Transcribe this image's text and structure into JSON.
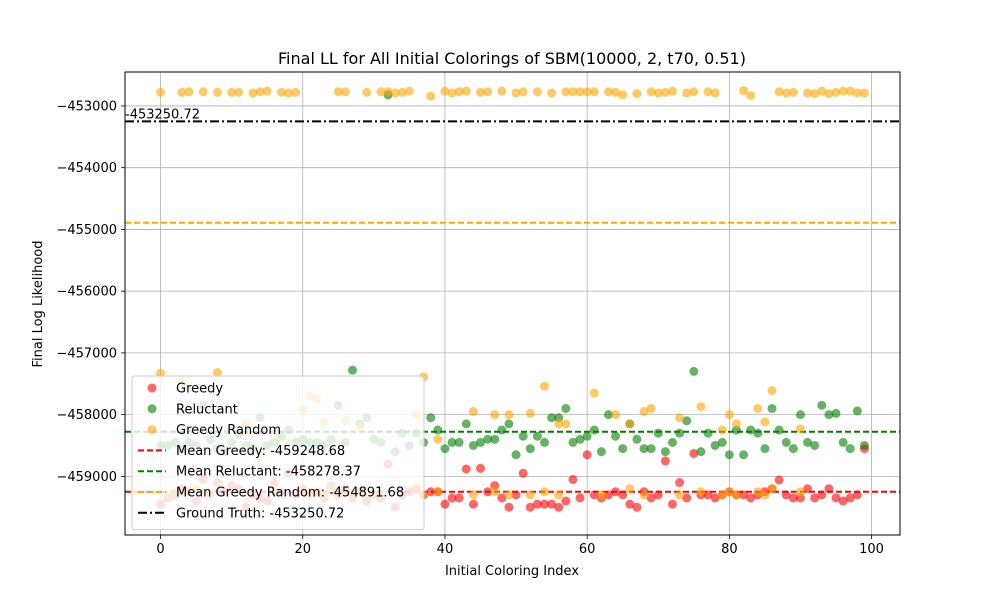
{
  "chart_data": {
    "type": "scatter",
    "title": "Final LL for All Initial Colorings of SBM(10000, 2, t70, 0.51)",
    "xlabel": "Initial Coloring Index",
    "ylabel": "Final Log Likelihood",
    "xlim": [
      -5,
      104
    ],
    "ylim": [
      -459950,
      -452450
    ],
    "x_ticks": [
      0,
      20,
      40,
      60,
      80,
      100
    ],
    "x_tick_labels": [
      "0",
      "20",
      "40",
      "60",
      "80",
      "100"
    ],
    "y_ticks": [
      -459000,
      -458000,
      -457000,
      -456000,
      -455000,
      -454000,
      -453000
    ],
    "y_tick_labels": [
      "−459000",
      "−458000",
      "−457000",
      "−456000",
      "−455000",
      "−454000",
      "−453000"
    ],
    "grid": true,
    "legend_position": "lower-left",
    "series": [
      {
        "name": "Greedy",
        "kind": "points",
        "color": "#ff0000",
        "alpha": 0.6,
        "x": [
          0,
          1,
          2,
          3,
          4,
          5,
          6,
          7,
          8,
          9,
          10,
          11,
          12,
          13,
          14,
          15,
          16,
          17,
          18,
          19,
          20,
          21,
          22,
          23,
          24,
          25,
          26,
          27,
          28,
          29,
          30,
          31,
          32,
          33,
          34,
          35,
          36,
          37,
          38,
          39,
          40,
          41,
          42,
          43,
          44,
          45,
          46,
          47,
          48,
          49,
          50,
          51,
          52,
          53,
          54,
          55,
          56,
          57,
          58,
          59,
          60,
          61,
          62,
          63,
          64,
          65,
          66,
          67,
          68,
          69,
          70,
          71,
          72,
          73,
          74,
          75,
          76,
          77,
          78,
          79,
          80,
          81,
          82,
          83,
          84,
          85,
          86,
          87,
          88,
          89,
          90,
          91,
          92,
          93,
          94,
          95,
          96,
          97,
          98,
          99
        ],
        "y": [
          -459450,
          -459350,
          -459300,
          -459200,
          -459250,
          -459400,
          -459050,
          -459300,
          -459100,
          -459250,
          -459150,
          -459200,
          -459500,
          -459300,
          -459350,
          -459400,
          -459100,
          -459250,
          -458950,
          -459300,
          -459200,
          -459300,
          -459250,
          -459350,
          -459150,
          -459300,
          -459200,
          -459350,
          -459250,
          -459400,
          -459300,
          -459350,
          -458800,
          -459500,
          -459300,
          -459250,
          -459200,
          -459300,
          -459250,
          -459250,
          -459450,
          -459350,
          -459350,
          -458880,
          -459450,
          -458870,
          -459250,
          -459150,
          -459350,
          -459500,
          -459300,
          -458950,
          -459500,
          -459450,
          -459450,
          -459450,
          -459500,
          -459400,
          -459050,
          -459350,
          -458650,
          -459300,
          -459350,
          -459300,
          -459250,
          -459300,
          -459450,
          -459500,
          -459250,
          -459350,
          -459300,
          -458750,
          -459450,
          -459100,
          -459350,
          -458630,
          -459300,
          -459300,
          -459350,
          -459300,
          -459250,
          -459300,
          -459300,
          -459350,
          -459300,
          -459250,
          -459200,
          -459060,
          -459300,
          -459350,
          -459350,
          -459200,
          -459350,
          -459300,
          -459200,
          -459350,
          -459400,
          -459350,
          -459300,
          -458550
        ]
      },
      {
        "name": "Reluctant",
        "kind": "points",
        "color": "#008000",
        "alpha": 0.6,
        "x": [
          0,
          1,
          2,
          3,
          4,
          5,
          6,
          7,
          8,
          9,
          10,
          11,
          12,
          13,
          14,
          15,
          16,
          17,
          18,
          19,
          20,
          21,
          22,
          23,
          24,
          25,
          26,
          27,
          28,
          29,
          30,
          31,
          32,
          33,
          34,
          35,
          36,
          37,
          38,
          39,
          40,
          41,
          42,
          43,
          44,
          45,
          46,
          47,
          48,
          49,
          50,
          51,
          52,
          53,
          54,
          55,
          56,
          57,
          58,
          59,
          60,
          61,
          62,
          63,
          64,
          65,
          66,
          67,
          68,
          69,
          70,
          71,
          72,
          73,
          74,
          75,
          76,
          77,
          78,
          79,
          80,
          81,
          82,
          83,
          84,
          85,
          86,
          87,
          88,
          89,
          90,
          91,
          92,
          93,
          94,
          95,
          96,
          97,
          98,
          99
        ],
        "y": [
          -458500,
          -458500,
          -458450,
          -458550,
          -458450,
          -458500,
          -457850,
          -458400,
          -458550,
          -458600,
          -458450,
          -458300,
          -458500,
          -458550,
          -458050,
          -458500,
          -458450,
          -458350,
          -458250,
          -458450,
          -458400,
          -458450,
          -458450,
          -458500,
          -458400,
          -457850,
          -458450,
          -457280,
          -458150,
          -458050,
          -458400,
          -458450,
          -452820,
          -458600,
          -458300,
          -458500,
          -458300,
          -458450,
          -458050,
          -458250,
          -458550,
          -458450,
          -458450,
          -458150,
          -458500,
          -458450,
          -458400,
          -458400,
          -458250,
          -458150,
          -458650,
          -458350,
          -458550,
          -458350,
          -458450,
          -458050,
          -458050,
          -457900,
          -458450,
          -458400,
          -458350,
          -458250,
          -458600,
          -458000,
          -458350,
          -458550,
          -458150,
          -458400,
          -458550,
          -458550,
          -458300,
          -458600,
          -458450,
          -458300,
          -458100,
          -457300,
          -458600,
          -458300,
          -458500,
          -458450,
          -458650,
          -458250,
          -458650,
          -458250,
          -458300,
          -458550,
          -457900,
          -458250,
          -458450,
          -458550,
          -458000,
          -458450,
          -458500,
          -457850,
          -458000,
          -457980,
          -458450,
          -458550,
          -457940,
          -458500
        ]
      },
      {
        "name": "Greedy Random",
        "kind": "points",
        "color": "#ffa500",
        "alpha": 0.6,
        "x": [
          0,
          1,
          2,
          3,
          4,
          5,
          6,
          7,
          8,
          9,
          10,
          11,
          12,
          13,
          14,
          15,
          16,
          17,
          18,
          19,
          20,
          21,
          22,
          23,
          24,
          25,
          26,
          27,
          28,
          29,
          30,
          31,
          32,
          33,
          34,
          35,
          36,
          37,
          38,
          39,
          40,
          41,
          42,
          43,
          44,
          45,
          46,
          47,
          48,
          49,
          50,
          51,
          52,
          53,
          54,
          55,
          56,
          57,
          58,
          59,
          60,
          61,
          62,
          63,
          64,
          65,
          66,
          67,
          68,
          69,
          70,
          71,
          72,
          73,
          74,
          75,
          76,
          77,
          78,
          79,
          80,
          81,
          82,
          83,
          84,
          85,
          86,
          87,
          88,
          89,
          90,
          91,
          92,
          93,
          94,
          95,
          96,
          97,
          98,
          99,
          0,
          3,
          8,
          12,
          18,
          20,
          21,
          22,
          23,
          26,
          28,
          36,
          37,
          39,
          44,
          47,
          49,
          52,
          54,
          56,
          57,
          61,
          64,
          66,
          68,
          69,
          73,
          76,
          79,
          80,
          81,
          84,
          85,
          86,
          90
        ],
        "y": [
          -452780,
          -459300,
          -459250,
          -452780,
          -452770,
          -459200,
          -452770,
          -459300,
          -452780,
          -459250,
          -452780,
          -452780,
          -459350,
          -452790,
          -452770,
          -452760,
          -459250,
          -452780,
          -452790,
          -452780,
          -459200,
          -459300,
          -459250,
          -459300,
          -459200,
          -452770,
          -452770,
          -459300,
          -459250,
          -452780,
          -459300,
          -452770,
          -452770,
          -452790,
          -452780,
          -452760,
          -459200,
          -459300,
          -452840,
          -459250,
          -452760,
          -452790,
          -452770,
          -452760,
          -459300,
          -452780,
          -452770,
          -459250,
          -452760,
          -459300,
          -452790,
          -452770,
          -459300,
          -452770,
          -459250,
          -452790,
          -459300,
          -452770,
          -452770,
          -452770,
          -452770,
          -452770,
          -459300,
          -452770,
          -452780,
          -452820,
          -459200,
          -452800,
          -459300,
          -452770,
          -452790,
          -452780,
          -452760,
          -459300,
          -452790,
          -452770,
          -459250,
          -452770,
          -452790,
          -459300,
          -459250,
          -459300,
          -452750,
          -452830,
          -459250,
          -459300,
          -459200,
          -452770,
          -452790,
          -452780,
          -459250,
          -452790,
          -452800,
          -452760,
          -452800,
          -452780,
          -452760,
          -452760,
          -452790,
          -452790,
          -457330,
          -457450,
          -457320,
          -458150,
          -458450,
          -457920,
          -457700,
          -457750,
          -458130,
          -458100,
          -458200,
          -458000,
          -457390,
          -458400,
          -457950,
          -458000,
          -458000,
          -457980,
          -457540,
          -458150,
          -458150,
          -457650,
          -458000,
          -458150,
          -457950,
          -457900,
          -458050,
          -457870,
          -458250,
          -458000,
          -458150,
          -457900,
          -458120,
          -457610,
          -458230
        ]
      },
      {
        "name": "Mean Greedy: -459248.68",
        "kind": "hline",
        "y": -459248.68,
        "color": "#ff0000",
        "dash": "dashed"
      },
      {
        "name": "Mean Reluctant: -458278.37",
        "kind": "hline",
        "y": -458278.37,
        "color": "#008000",
        "dash": "dashed"
      },
      {
        "name": "Mean Greedy Random: -454891.68",
        "kind": "hline",
        "y": -454891.68,
        "color": "#ffa500",
        "dash": "dashed"
      },
      {
        "name": "Ground Truth: -453250.72",
        "kind": "hline",
        "y": -453250.72,
        "color": "#000000",
        "dash": "dashdot"
      }
    ],
    "annotations": [
      {
        "text": "-453250.72",
        "x": -5,
        "y": -453250.72
      }
    ]
  }
}
